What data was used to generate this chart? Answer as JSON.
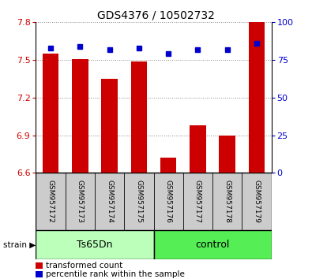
{
  "title": "GDS4376 / 10502732",
  "samples": [
    "GSM957172",
    "GSM957173",
    "GSM957174",
    "GSM957175",
    "GSM957176",
    "GSM957177",
    "GSM957178",
    "GSM957179"
  ],
  "red_values": [
    7.55,
    7.51,
    7.35,
    7.49,
    6.72,
    6.98,
    6.9,
    7.8
  ],
  "blue_values": [
    83,
    84,
    82,
    83,
    79,
    82,
    82,
    86
  ],
  "ylim_left": [
    6.6,
    7.8
  ],
  "ylim_right": [
    0,
    100
  ],
  "yticks_left": [
    6.6,
    6.9,
    7.2,
    7.5,
    7.8
  ],
  "yticks_right": [
    0,
    25,
    50,
    75,
    100
  ],
  "red_color": "#cc0000",
  "blue_color": "#0000cc",
  "bar_width": 0.55,
  "group1_label": "Ts65Dn",
  "group2_label": "control",
  "group1_color": "#bbffbb",
  "group2_color": "#55ee55",
  "strain_label": "strain",
  "legend_red": "transformed count",
  "legend_blue": "percentile rank within the sample",
  "bg_gray": "#cccccc",
  "dotted_color": "#888888",
  "title_fontsize": 10,
  "tick_fontsize": 8,
  "sample_fontsize": 6.5,
  "group_fontsize": 9
}
